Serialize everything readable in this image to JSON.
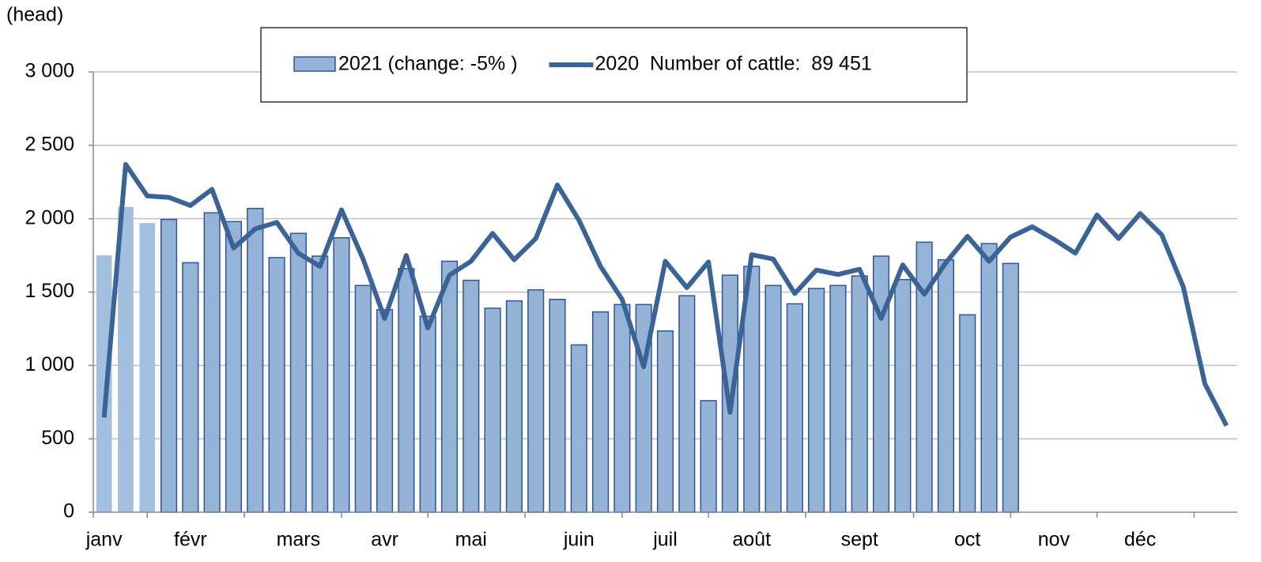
{
  "chart_data": {
    "type": "bar_line",
    "y_axis_label": "(head)",
    "categories": [
      "janv",
      null,
      null,
      null,
      "févr",
      null,
      null,
      null,
      null,
      "mars",
      null,
      null,
      null,
      "avr",
      null,
      null,
      null,
      "mai",
      null,
      null,
      null,
      null,
      "juin",
      null,
      null,
      null,
      "juil",
      null,
      null,
      null,
      "août",
      null,
      null,
      null,
      null,
      "sept",
      null,
      null,
      null,
      null,
      "oct",
      null,
      null,
      null,
      "nov",
      null,
      null,
      null,
      "déc",
      null,
      null,
      null,
      null
    ],
    "series": [
      {
        "name": "2021 (change: -5% )",
        "type": "bar",
        "color": "#95b3d7",
        "edge_color": "#2f5597",
        "colors": [
          "#a3bfe0",
          "#a3bfe0",
          "#a3bfe0",
          "#95b3d7",
          "#95b3d7",
          "#95b3d7",
          "#95b3d7",
          "#95b3d7",
          "#95b3d7",
          "#95b3d7",
          "#95b3d7",
          "#95b3d7",
          "#95b3d7",
          "#95b3d7",
          "#95b3d7",
          "#95b3d7",
          "#95b3d7",
          "#95b3d7",
          "#95b3d7",
          "#95b3d7",
          "#95b3d7",
          "#95b3d7",
          "#95b3d7",
          "#95b3d7",
          "#95b3d7",
          "#95b3d7",
          "#95b3d7",
          "#95b3d7",
          "#95b3d7",
          "#95b3d7",
          "#95b3d7",
          "#95b3d7",
          "#95b3d7",
          "#95b3d7",
          "#95b3d7",
          "#95b3d7",
          "#95b3d7",
          "#95b3d7",
          "#95b3d7",
          "#95b3d7",
          "#95b3d7",
          "#95b3d7",
          "#95b3d7"
        ],
        "values": [
          1750,
          2080,
          1970,
          1995,
          1700,
          2040,
          1980,
          2070,
          1735,
          1900,
          1745,
          1870,
          1545,
          1380,
          1660,
          1335,
          1710,
          1580,
          1390,
          1440,
          1515,
          1450,
          1140,
          1365,
          1415,
          1415,
          1235,
          1475,
          760,
          1615,
          1675,
          1545,
          1420,
          1525,
          1545,
          1610,
          1745,
          1585,
          1840,
          1720,
          1345,
          1830,
          1695,
          null,
          null,
          null,
          null,
          null,
          null,
          null,
          null,
          null,
          null
        ]
      },
      {
        "name": "2020  Number of cattle:  89 451",
        "type": "line",
        "color": "#3b6496",
        "values": [
          645,
          2370,
          2155,
          2145,
          2090,
          2200,
          1800,
          1930,
          1975,
          1765,
          1675,
          2060,
          1725,
          1320,
          1750,
          1255,
          1615,
          1710,
          1900,
          1720,
          1865,
          2230,
          1990,
          1675,
          1450,
          990,
          1710,
          1530,
          1705,
          680,
          1755,
          1725,
          1490,
          1650,
          1620,
          1655,
          1320,
          1685,
          1485,
          1700,
          1880,
          1710,
          1875,
          1945,
          1860,
          1765,
          2025,
          1865,
          2035,
          1890,
          1535,
          875,
          590
        ]
      }
    ],
    "ylim": [
      0,
      3000
    ],
    "yticks": [
      0,
      500,
      {
        "value": 1000,
        "label": "1 000"
      },
      {
        "value": 1500,
        "label": "1 500"
      },
      {
        "value": 2000,
        "label": "2 000"
      },
      {
        "value": 2500,
        "label": "2 500"
      },
      {
        "value": 3000,
        "label": "3 000"
      }
    ],
    "grid": true,
    "legend": "top"
  }
}
